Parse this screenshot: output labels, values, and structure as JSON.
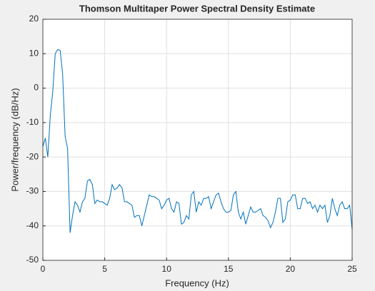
{
  "chart_data": {
    "type": "line",
    "title": "Thomson Multitaper Power Spectral Density Estimate",
    "xlabel": "Frequency (Hz)",
    "ylabel": "Power/frequency (dB/Hz)",
    "x": [
      0,
      0.2,
      0.4,
      0.6,
      0.8,
      1.0,
      1.2,
      1.4,
      1.6,
      1.8,
      2.0,
      2.2,
      2.4,
      2.6,
      2.8,
      3.0,
      3.2,
      3.4,
      3.6,
      3.8,
      4.0,
      4.2,
      4.4,
      4.6,
      4.8,
      5.0,
      5.2,
      5.4,
      5.6,
      5.8,
      6.0,
      6.2,
      6.4,
      6.6,
      6.8,
      7.0,
      7.2,
      7.4,
      7.6,
      7.8,
      8.0,
      8.2,
      8.4,
      8.6,
      8.8,
      9.0,
      9.2,
      9.4,
      9.6,
      9.8,
      10.0,
      10.2,
      10.4,
      10.6,
      10.8,
      11.0,
      11.2,
      11.4,
      11.6,
      11.8,
      12.0,
      12.2,
      12.4,
      12.6,
      12.8,
      13.0,
      13.2,
      13.4,
      13.6,
      13.8,
      14.0,
      14.2,
      14.4,
      14.6,
      14.8,
      15.0,
      15.2,
      15.4,
      15.6,
      15.8,
      16.0,
      16.2,
      16.4,
      16.6,
      16.8,
      17.0,
      17.2,
      17.4,
      17.6,
      17.8,
      18.0,
      18.2,
      18.4,
      18.6,
      18.8,
      19.0,
      19.2,
      19.4,
      19.6,
      19.8,
      20.0,
      20.2,
      20.4,
      20.6,
      20.8,
      21.0,
      21.2,
      21.4,
      21.6,
      21.8,
      22.0,
      22.2,
      22.4,
      22.6,
      22.8,
      23.0,
      23.2,
      23.4,
      23.6,
      23.8,
      24.0,
      24.2,
      24.4,
      24.6,
      24.8,
      25.0
    ],
    "series": [
      {
        "color": "#0072bd",
        "values": [
          -17,
          -14.5,
          -20,
          -8,
          -1,
          10,
          11.2,
          11,
          4,
          -14,
          -17.5,
          -42,
          -37,
          -33,
          -34,
          -36,
          -33,
          -32,
          -27,
          -26.5,
          -28,
          -33.5,
          -32.5,
          -33,
          -33,
          -33.5,
          -34,
          -32,
          -28,
          -29.5,
          -29,
          -28,
          -29,
          -33,
          -33,
          -33.5,
          -34,
          -37.5,
          -37,
          -37,
          -40,
          -37,
          -34,
          -31,
          -31.5,
          -31.5,
          -32,
          -32.5,
          -35,
          -34,
          -32.5,
          -32,
          -35,
          -36,
          -33,
          -33.5,
          -39.5,
          -39,
          -37,
          -38,
          -31,
          -30,
          -36,
          -33,
          -34,
          -32,
          -32,
          -31.5,
          -35,
          -33,
          -31,
          -30.5,
          -33,
          -35,
          -36,
          -36,
          -35.5,
          -31,
          -30,
          -36,
          -38,
          -36,
          -39.5,
          -37,
          -34.5,
          -36,
          -36,
          -35.5,
          -35,
          -37,
          -37.5,
          -38.5,
          -40.5,
          -39,
          -36,
          -32,
          -32,
          -39,
          -38,
          -33,
          -32.5,
          -31,
          -31,
          -35,
          -35,
          -32,
          -32,
          -33.5,
          -33,
          -35,
          -34,
          -36,
          -34,
          -35,
          -34,
          -39,
          -37,
          -32,
          -35,
          -37,
          -34,
          -33,
          -35,
          -35,
          -34,
          -41
        ]
      }
    ],
    "xlim": [
      0,
      25
    ],
    "xticks": [
      0,
      5,
      10,
      15,
      20,
      25
    ],
    "ylim": [
      -50,
      20
    ],
    "yticks": [
      -50,
      -40,
      -30,
      -20,
      -10,
      0,
      10,
      20
    ],
    "grid": true
  }
}
